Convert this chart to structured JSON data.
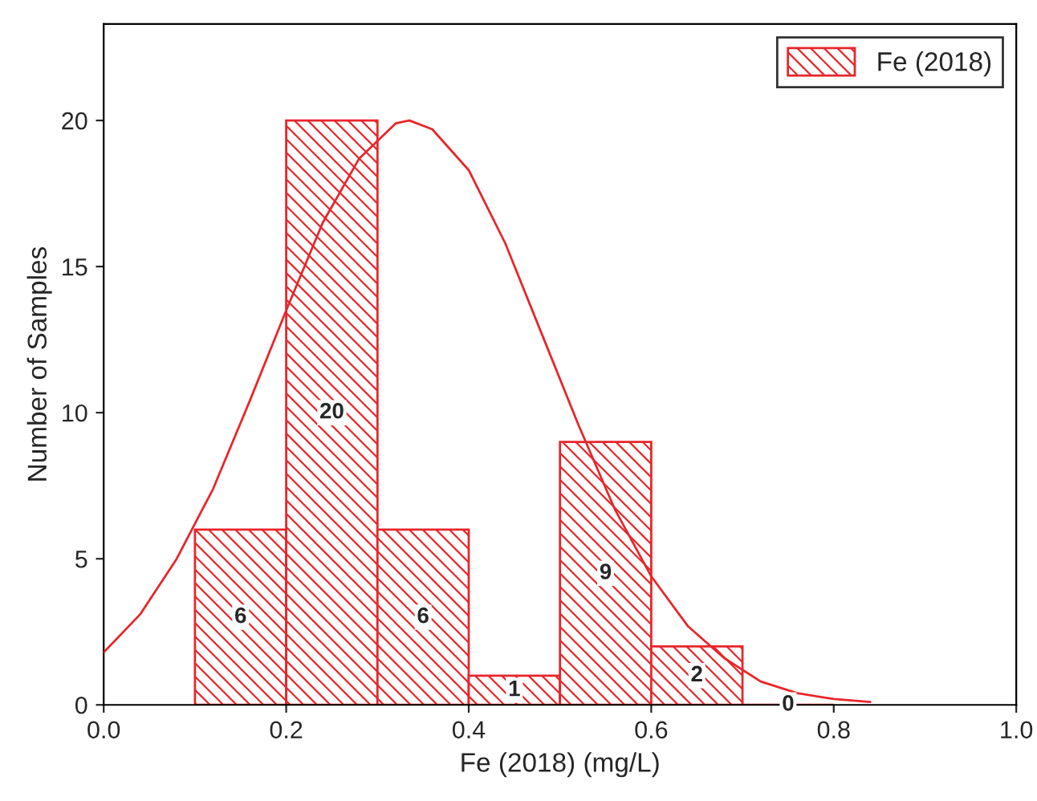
{
  "chart_data": {
    "type": "histogram",
    "xlabel": "Fe (2018) (mg/L)",
    "ylabel": "Number of Samples",
    "xlim": [
      0,
      1
    ],
    "ylim": [
      0,
      23.3
    ],
    "xticks": [
      {
        "value": 0,
        "label": "0.0"
      },
      {
        "value": 0.2,
        "label": "0.2"
      },
      {
        "value": 0.4,
        "label": "0.4"
      },
      {
        "value": 0.6,
        "label": "0.6"
      },
      {
        "value": 0.8,
        "label": "0.8"
      },
      {
        "value": 1,
        "label": "1.0"
      }
    ],
    "yticks": [
      0,
      5,
      10,
      15,
      20
    ],
    "series": [
      {
        "name": "Fe (2018)",
        "color": "#e8262b",
        "bins": [
          0.1,
          0.2,
          0.3,
          0.4,
          0.5,
          0.6,
          0.7,
          0.8
        ],
        "values": [
          6,
          20,
          6,
          1,
          9,
          2,
          0
        ],
        "data_labels": true
      },
      {
        "type": "line",
        "color": "#e8262b",
        "x": [
          0,
          0.04,
          0.08,
          0.12,
          0.16,
          0.2,
          0.24,
          0.28,
          0.32,
          0.335,
          0.36,
          0.4,
          0.44,
          0.48,
          0.52,
          0.56,
          0.6,
          0.64,
          0.68,
          0.72,
          0.76,
          0.8,
          0.84
        ],
        "values": [
          1.8,
          3.1,
          5.0,
          7.4,
          10.4,
          13.5,
          16.5,
          18.7,
          19.9,
          20,
          19.7,
          18.3,
          15.8,
          12.7,
          9.6,
          6.7,
          4.4,
          2.7,
          1.6,
          0.8,
          0.4,
          0.2,
          0.1
        ]
      }
    ],
    "legend": "top right",
    "grid": false
  }
}
